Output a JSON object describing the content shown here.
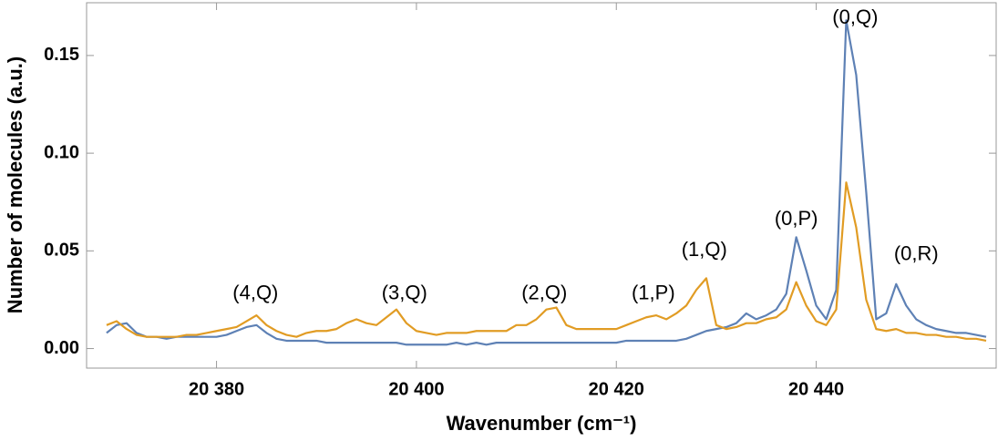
{
  "chart_data": {
    "type": "line",
    "xlabel": "Wavenumber (cm⁻¹)",
    "ylabel": "Number of molecules (a.u.)",
    "x": [
      20369,
      20370,
      20371,
      20372,
      20373,
      20374,
      20375,
      20376,
      20377,
      20378,
      20379,
      20380,
      20381,
      20382,
      20383,
      20384,
      20385,
      20386,
      20387,
      20388,
      20389,
      20390,
      20391,
      20392,
      20393,
      20394,
      20395,
      20396,
      20397,
      20398,
      20399,
      20400,
      20401,
      20402,
      20403,
      20404,
      20405,
      20406,
      20407,
      20408,
      20409,
      20410,
      20411,
      20412,
      20413,
      20414,
      20415,
      20416,
      20417,
      20418,
      20419,
      20420,
      20421,
      20422,
      20423,
      20424,
      20425,
      20426,
      20427,
      20428,
      20429,
      20430,
      20431,
      20432,
      20433,
      20434,
      20435,
      20436,
      20437,
      20438,
      20439,
      20440,
      20441,
      20442,
      20443,
      20444,
      20445,
      20446,
      20447,
      20448,
      20449,
      20450,
      20451,
      20452,
      20453,
      20454,
      20455,
      20456,
      20457
    ],
    "series": [
      {
        "color": "#5e81b5",
        "values": [
          0.008,
          0.012,
          0.013,
          0.008,
          0.006,
          0.006,
          0.005,
          0.006,
          0.006,
          0.006,
          0.006,
          0.006,
          0.007,
          0.009,
          0.011,
          0.012,
          0.008,
          0.005,
          0.004,
          0.004,
          0.004,
          0.004,
          0.003,
          0.003,
          0.003,
          0.003,
          0.003,
          0.003,
          0.003,
          0.003,
          0.002,
          0.002,
          0.002,
          0.002,
          0.002,
          0.003,
          0.002,
          0.003,
          0.002,
          0.003,
          0.003,
          0.003,
          0.003,
          0.003,
          0.003,
          0.003,
          0.003,
          0.003,
          0.003,
          0.003,
          0.003,
          0.003,
          0.004,
          0.004,
          0.004,
          0.004,
          0.004,
          0.004,
          0.005,
          0.007,
          0.009,
          0.01,
          0.011,
          0.013,
          0.018,
          0.015,
          0.017,
          0.02,
          0.028,
          0.057,
          0.04,
          0.022,
          0.015,
          0.03,
          0.168,
          0.14,
          0.08,
          0.015,
          0.018,
          0.033,
          0.022,
          0.015,
          0.012,
          0.01,
          0.009,
          0.008,
          0.008,
          0.007,
          0.006
        ]
      },
      {
        "color": "#e19c24",
        "values": [
          0.012,
          0.014,
          0.01,
          0.007,
          0.006,
          0.006,
          0.006,
          0.006,
          0.007,
          0.007,
          0.008,
          0.009,
          0.01,
          0.011,
          0.014,
          0.017,
          0.012,
          0.009,
          0.007,
          0.006,
          0.008,
          0.009,
          0.009,
          0.01,
          0.013,
          0.015,
          0.013,
          0.012,
          0.016,
          0.02,
          0.013,
          0.009,
          0.008,
          0.007,
          0.008,
          0.008,
          0.008,
          0.009,
          0.009,
          0.009,
          0.009,
          0.012,
          0.012,
          0.015,
          0.02,
          0.021,
          0.012,
          0.01,
          0.01,
          0.01,
          0.01,
          0.01,
          0.012,
          0.014,
          0.016,
          0.017,
          0.015,
          0.018,
          0.022,
          0.03,
          0.036,
          0.012,
          0.01,
          0.011,
          0.013,
          0.013,
          0.015,
          0.016,
          0.02,
          0.034,
          0.022,
          0.014,
          0.012,
          0.02,
          0.085,
          0.062,
          0.025,
          0.01,
          0.009,
          0.01,
          0.008,
          0.008,
          0.007,
          0.007,
          0.006,
          0.006,
          0.005,
          0.005,
          0.004
        ]
      }
    ],
    "xlim": [
      20367,
      20458
    ],
    "ylim": [
      -0.01,
      0.177
    ],
    "xticks": [
      {
        "value": 20380,
        "label": "20 380"
      },
      {
        "value": 20400,
        "label": "20 400"
      },
      {
        "value": 20420,
        "label": "20 420"
      },
      {
        "value": 20440,
        "label": "20 440"
      }
    ],
    "yticks": [
      {
        "value": 0,
        "label": "0.00"
      },
      {
        "value": 0.05,
        "label": "0.05"
      },
      {
        "value": 0.1,
        "label": "0.10"
      },
      {
        "value": 0.15,
        "label": "0.15"
      }
    ],
    "annotations": [
      {
        "text": "(4,Q)",
        "x": 20383.9,
        "y": 0.028
      },
      {
        "text": "(3,Q)",
        "x": 20398.8,
        "y": 0.028
      },
      {
        "text": "(2,Q)",
        "x": 20412.8,
        "y": 0.028
      },
      {
        "text": "(1,P)",
        "x": 20423.7,
        "y": 0.028
      },
      {
        "text": "(1,Q)",
        "x": 20428.8,
        "y": 0.05
      },
      {
        "text": "(0,P)",
        "x": 20438,
        "y": 0.066
      },
      {
        "text": "(0,Q)",
        "x": 20443.9,
        "y": 0.169
      },
      {
        "text": "(0,R)",
        "x": 20450,
        "y": 0.048
      }
    ]
  }
}
